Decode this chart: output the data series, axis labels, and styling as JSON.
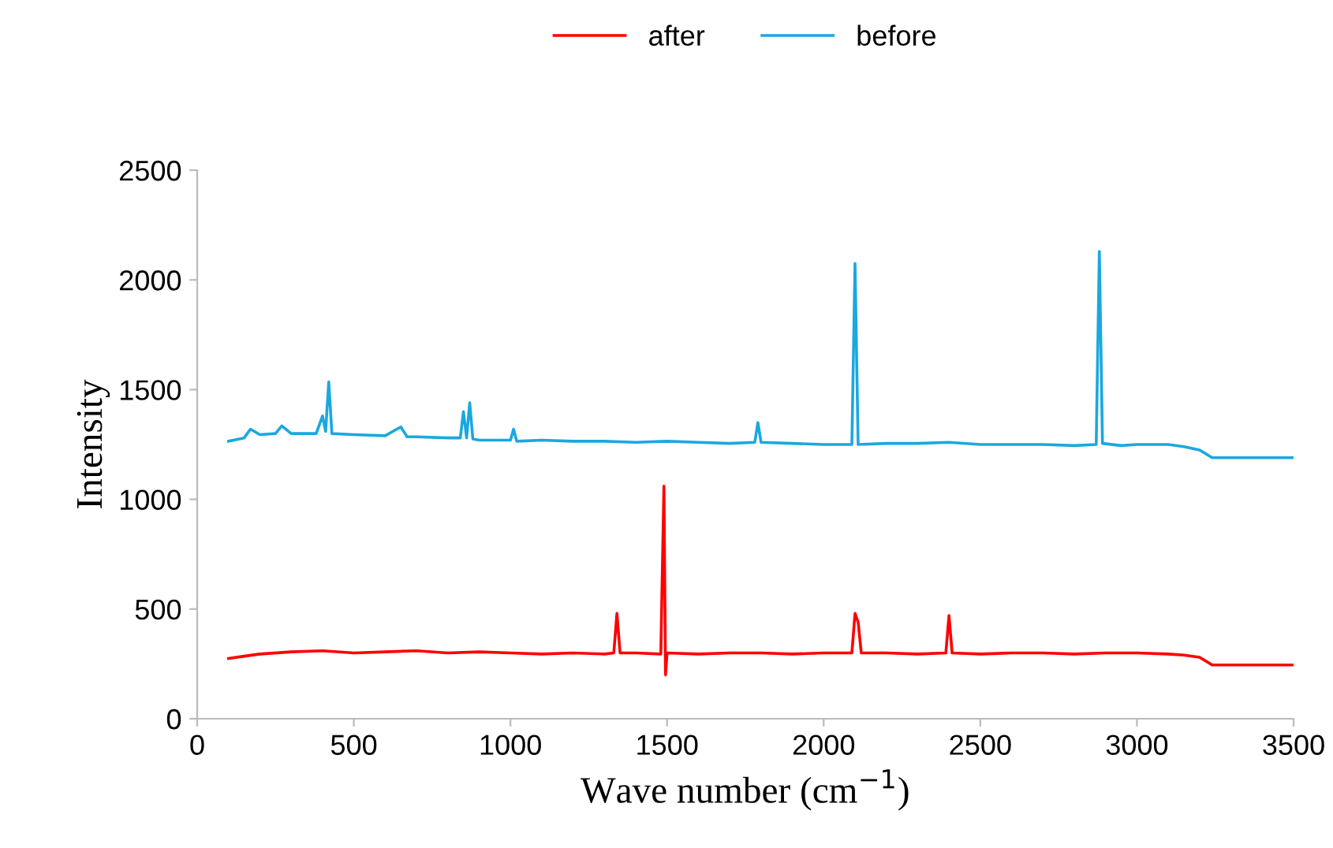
{
  "chart_data": {
    "type": "line",
    "xlabel": "Wave number (cm$^{−1}$)",
    "ylabel": "Intensity",
    "xlim": [
      0,
      3500
    ],
    "xticks": [
      0,
      500,
      1000,
      1500,
      2000,
      2500,
      3000,
      3500
    ],
    "ylim": [
      0,
      2500
    ],
    "yticks": [
      0,
      500,
      1000,
      1500,
      2000,
      2500
    ],
    "grid": false,
    "legend": "top",
    "marker": "none",
    "line_style": "solid",
    "series": [
      {
        "name": "after",
        "color": "#ff0000",
        "x": [
          100,
          150,
          200,
          300,
          400,
          500,
          600,
          700,
          800,
          900,
          1000,
          1100,
          1200,
          1300,
          1330,
          1340,
          1350,
          1400,
          1480,
          1490,
          1495,
          1500,
          1600,
          1700,
          1800,
          1900,
          2000,
          2090,
          2100,
          2110,
          2120,
          2200,
          2300,
          2390,
          2400,
          2410,
          2500,
          2600,
          2700,
          2800,
          2900,
          3000,
          3100,
          3150,
          3200,
          3240,
          3300,
          3400,
          3500
        ],
        "values": [
          275,
          285,
          295,
          305,
          310,
          300,
          305,
          310,
          300,
          305,
          300,
          295,
          300,
          295,
          300,
          480,
          300,
          300,
          295,
          1060,
          200,
          300,
          295,
          300,
          300,
          295,
          300,
          300,
          480,
          440,
          300,
          300,
          295,
          300,
          470,
          300,
          295,
          300,
          300,
          295,
          300,
          300,
          295,
          290,
          280,
          245,
          245,
          245,
          245
        ]
      },
      {
        "name": "before",
        "color": "#1aa8e0",
        "x": [
          100,
          150,
          170,
          200,
          250,
          270,
          300,
          380,
          400,
          410,
          420,
          430,
          500,
          600,
          650,
          670,
          700,
          800,
          840,
          850,
          860,
          870,
          880,
          900,
          1000,
          1010,
          1020,
          1100,
          1200,
          1300,
          1400,
          1500,
          1600,
          1700,
          1780,
          1790,
          1800,
          1900,
          2000,
          2090,
          2100,
          2110,
          2200,
          2300,
          2400,
          2500,
          2600,
          2700,
          2800,
          2870,
          2880,
          2890,
          2950,
          3000,
          3100,
          3150,
          3200,
          3240,
          3300,
          3400,
          3500
        ],
        "values": [
          1265,
          1280,
          1320,
          1295,
          1300,
          1335,
          1300,
          1300,
          1380,
          1310,
          1535,
          1300,
          1295,
          1290,
          1330,
          1285,
          1285,
          1280,
          1280,
          1400,
          1280,
          1440,
          1275,
          1270,
          1270,
          1320,
          1265,
          1270,
          1265,
          1265,
          1260,
          1265,
          1260,
          1255,
          1260,
          1350,
          1260,
          1255,
          1250,
          1250,
          2075,
          1250,
          1255,
          1255,
          1260,
          1250,
          1250,
          1250,
          1245,
          1250,
          2130,
          1255,
          1245,
          1250,
          1250,
          1240,
          1225,
          1190,
          1190,
          1190,
          1190
        ]
      }
    ]
  }
}
